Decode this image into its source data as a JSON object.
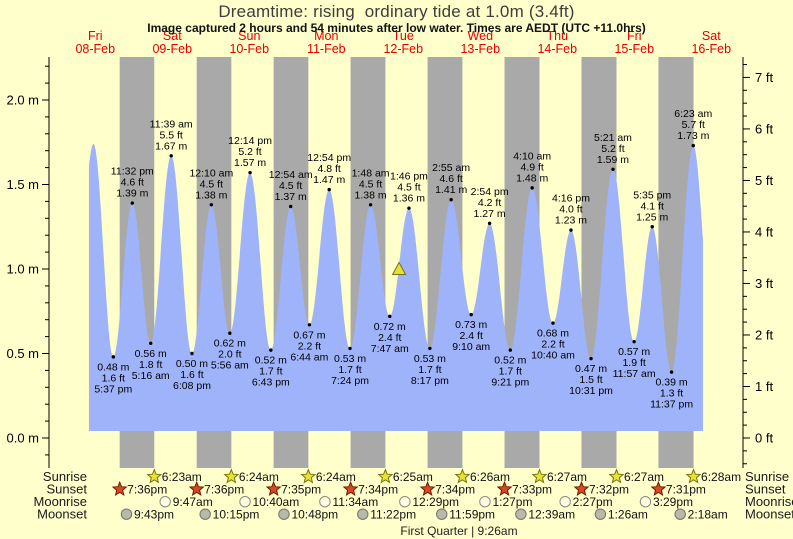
{
  "title": "Dreamtime: rising  ordinary tide at 1.0m (3.4ft)",
  "subtitle": "Image captured 2 hours and 54 minutes after low water. Times are AEDT (UTC +11.0hrs)",
  "colors": {
    "background": "#ffffcc",
    "night_band": "#a9a9a9",
    "tide_fill": "#9fb3fb",
    "day_label": "#e60000",
    "axis": "#000000",
    "annotation_text": "#000000",
    "sunrise_star_fill": "#e8e332",
    "sunrise_star_stroke": "#73730d",
    "sunset_star_fill": "#d9491f",
    "sunset_star_stroke": "#6e1a02",
    "moonrise_circle_fill": "#ffffdd",
    "moonrise_circle_stroke": "#8a8a8a",
    "moonset_circle_fill": "#b9b9ab",
    "moonset_circle_stroke": "#74746a",
    "marker_fill": "#e6de3c",
    "marker_stroke": "#73730d"
  },
  "days": [
    {
      "dow": "Fri",
      "date": "08-Feb"
    },
    {
      "dow": "Sat",
      "date": "09-Feb"
    },
    {
      "dow": "Sun",
      "date": "10-Feb"
    },
    {
      "dow": "Mon",
      "date": "11-Feb"
    },
    {
      "dow": "Tue",
      "date": "12-Feb"
    },
    {
      "dow": "Wed",
      "date": "13-Feb"
    },
    {
      "dow": "Thu",
      "date": "14-Feb"
    },
    {
      "dow": "Fri",
      "date": "15-Feb"
    },
    {
      "dow": "Sat",
      "date": "16-Feb"
    }
  ],
  "left_axis_labels": [
    "2.0 m",
    "1.5 m",
    "1.0 m",
    "0.5 m",
    "0.0 m"
  ],
  "right_axis_labels": [
    "7 ft",
    "6 ft",
    "5 ft",
    "4 ft",
    "3 ft",
    "2 ft",
    "1 ft",
    "0 ft"
  ],
  "chart_data": {
    "type": "area",
    "series_name": "tide height",
    "units": [
      "m",
      "ft"
    ],
    "visible_m_ticks": [
      0.0,
      0.5,
      1.0,
      1.5,
      2.0
    ],
    "visible_ft_ticks": [
      0,
      1,
      2,
      3,
      4,
      5,
      6,
      7
    ],
    "events": [
      {
        "type": "high",
        "day": 0,
        "h": 11.43,
        "m": "1.74",
        "labeled": false
      },
      {
        "type": "low",
        "day": 0,
        "time": "5:37 pm",
        "m": "0.48",
        "ft": "1.6",
        "labeled": true
      },
      {
        "type": "high",
        "day": 0,
        "time": "11:32 pm",
        "m": "1.39",
        "ft": "4.6",
        "labeled": true
      },
      {
        "type": "low",
        "day": 1,
        "time": "5:16 am",
        "m": "0.56",
        "ft": "1.8",
        "labeled": true
      },
      {
        "type": "high",
        "day": 1,
        "time": "11:39 am",
        "m": "1.67",
        "ft": "5.5",
        "labeled": true
      },
      {
        "type": "low",
        "day": 1,
        "time": "6:08 pm",
        "m": "0.50",
        "ft": "1.6",
        "labeled": true
      },
      {
        "type": "high",
        "day": 2,
        "time": "12:10 am",
        "m": "1.38",
        "ft": "4.5",
        "labeled": true
      },
      {
        "type": "low",
        "day": 2,
        "time": "5:56 am",
        "m": "0.62",
        "ft": "2.0",
        "labeled": true
      },
      {
        "type": "high",
        "day": 2,
        "time": "12:14 pm",
        "m": "1.57",
        "ft": "5.2",
        "labeled": true
      },
      {
        "type": "low",
        "day": 2,
        "time": "6:43 pm",
        "m": "0.52",
        "ft": "1.7",
        "labeled": true
      },
      {
        "type": "high",
        "day": 3,
        "time": "12:54 am",
        "m": "1.37",
        "ft": "4.5",
        "labeled": true
      },
      {
        "type": "low",
        "day": 3,
        "time": "6:44 am",
        "m": "0.67",
        "ft": "2.2",
        "labeled": true
      },
      {
        "type": "high",
        "day": 3,
        "time": "12:54 pm",
        "m": "1.47",
        "ft": "4.8",
        "labeled": true
      },
      {
        "type": "low",
        "day": 3,
        "time": "7:24 pm",
        "m": "0.53",
        "ft": "1.7",
        "labeled": true
      },
      {
        "type": "high",
        "day": 4,
        "time": "1:48 am",
        "m": "1.38",
        "ft": "4.5",
        "labeled": true
      },
      {
        "type": "low",
        "day": 4,
        "time": "7:47 am",
        "m": "0.72",
        "ft": "2.4",
        "labeled": true
      },
      {
        "type": "high",
        "day": 4,
        "time": "1:46 pm",
        "m": "1.36",
        "ft": "4.5",
        "labeled": true
      },
      {
        "type": "low",
        "day": 4,
        "time": "8:17 pm",
        "m": "0.53",
        "ft": "1.7",
        "labeled": true
      },
      {
        "type": "high",
        "day": 5,
        "time": "2:55 am",
        "m": "1.41",
        "ft": "4.6",
        "labeled": true
      },
      {
        "type": "low",
        "day": 5,
        "time": "9:10 am",
        "m": "0.73",
        "ft": "2.4",
        "labeled": true
      },
      {
        "type": "high",
        "day": 5,
        "time": "2:54 pm",
        "m": "1.27",
        "ft": "4.2",
        "labeled": true
      },
      {
        "type": "low",
        "day": 5,
        "time": "9:21 pm",
        "m": "0.52",
        "ft": "1.7",
        "labeled": true
      },
      {
        "type": "high",
        "day": 6,
        "time": "4:10 am",
        "m": "1.48",
        "ft": "4.9",
        "labeled": true
      },
      {
        "type": "low",
        "day": 6,
        "time": "10:40 am",
        "m": "0.68",
        "ft": "2.2",
        "labeled": true
      },
      {
        "type": "high",
        "day": 6,
        "time": "4:16 pm",
        "m": "1.23",
        "ft": "4.0",
        "labeled": true
      },
      {
        "type": "low",
        "day": 6,
        "time": "10:31 pm",
        "m": "0.47",
        "ft": "1.5",
        "labeled": true
      },
      {
        "type": "high",
        "day": 7,
        "time": "5:21 am",
        "m": "1.59",
        "ft": "5.2",
        "labeled": true
      },
      {
        "type": "low",
        "day": 7,
        "time": "11:57 am",
        "m": "0.57",
        "ft": "1.9",
        "labeled": true
      },
      {
        "type": "high",
        "day": 7,
        "time": "5:35 pm",
        "m": "1.25",
        "ft": "4.1",
        "labeled": true
      },
      {
        "type": "low",
        "day": 7,
        "time": "11:37 pm",
        "m": "0.39",
        "ft": "1.3",
        "labeled": true
      },
      {
        "type": "high",
        "day": 8,
        "time": "6:23 am",
        "m": "1.73",
        "ft": "5.7",
        "labeled": true
      }
    ],
    "now_marker": {
      "day": 4,
      "time": "10:41 am",
      "m": "1.0"
    }
  },
  "astro": {
    "rows": [
      {
        "label": "Sunrise",
        "icon": "sunrise-star",
        "events": [
          {
            "day": 1,
            "time": "6:23am"
          },
          {
            "day": 2,
            "time": "6:24am"
          },
          {
            "day": 3,
            "time": "6:24am"
          },
          {
            "day": 4,
            "time": "6:25am"
          },
          {
            "day": 5,
            "time": "6:26am"
          },
          {
            "day": 6,
            "time": "6:27am"
          },
          {
            "day": 7,
            "time": "6:27am"
          },
          {
            "day": 8,
            "time": "6:28am"
          }
        ]
      },
      {
        "label": "Sunset",
        "icon": "sunset-star",
        "events": [
          {
            "day": 0,
            "time": "7:36pm"
          },
          {
            "day": 1,
            "time": "7:36pm"
          },
          {
            "day": 2,
            "time": "7:35pm"
          },
          {
            "day": 3,
            "time": "7:34pm"
          },
          {
            "day": 4,
            "time": "7:34pm"
          },
          {
            "day": 5,
            "time": "7:33pm"
          },
          {
            "day": 6,
            "time": "7:32pm"
          },
          {
            "day": 7,
            "time": "7:31pm"
          }
        ]
      },
      {
        "label": "Moonrise",
        "icon": "moonrise-circle",
        "events": [
          {
            "day": 1,
            "time": "9:47am"
          },
          {
            "day": 2,
            "time": "10:40am"
          },
          {
            "day": 3,
            "time": "11:34am"
          },
          {
            "day": 4,
            "time": "12:29pm"
          },
          {
            "day": 5,
            "time": "1:27pm"
          },
          {
            "day": 6,
            "time": "2:27pm"
          },
          {
            "day": 7,
            "time": "3:29pm"
          }
        ]
      },
      {
        "label": "Moonset",
        "icon": "moonset-circle",
        "events": [
          {
            "day": 0,
            "time": "9:43pm"
          },
          {
            "day": 1,
            "time": "10:15pm"
          },
          {
            "day": 2,
            "time": "10:48pm"
          },
          {
            "day": 3,
            "time": "11:22pm"
          },
          {
            "day": 4,
            "time": "11:59pm"
          },
          {
            "day": 6,
            "time": "12:39am"
          },
          {
            "day": 7,
            "time": "1:26am"
          },
          {
            "day": 8,
            "time": "2:18am"
          }
        ]
      }
    ],
    "footer": "First Quarter | 9:26am"
  }
}
